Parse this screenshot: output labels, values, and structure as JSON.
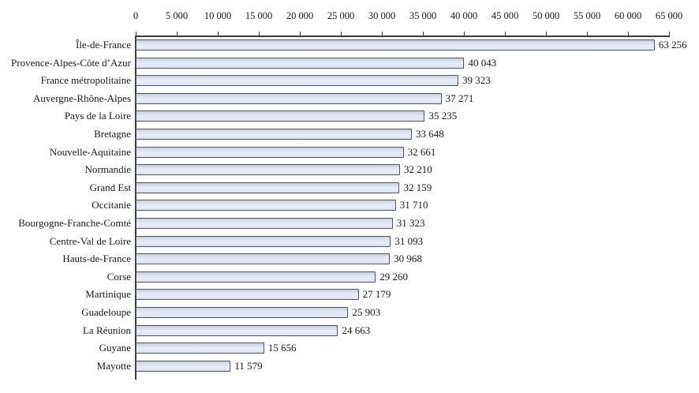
{
  "chart_data": {
    "type": "bar",
    "orientation": "horizontal",
    "title": "",
    "xlabel": "",
    "ylabel": "",
    "xlim": [
      0,
      65000
    ],
    "axis_position": "top",
    "grid": false,
    "legend": null,
    "x_ticks": [
      {
        "value": 0,
        "label": "0"
      },
      {
        "value": 5000,
        "label": "5 000"
      },
      {
        "value": 10000,
        "label": "10 000"
      },
      {
        "value": 15000,
        "label": "15 000"
      },
      {
        "value": 20000,
        "label": "20 000"
      },
      {
        "value": 25000,
        "label": "25 000"
      },
      {
        "value": 30000,
        "label": "30 000"
      },
      {
        "value": 35000,
        "label": "35 000"
      },
      {
        "value": 40000,
        "label": "40 000"
      },
      {
        "value": 45000,
        "label": "45 000"
      },
      {
        "value": 50000,
        "label": "50 000"
      },
      {
        "value": 55000,
        "label": "55 000"
      },
      {
        "value": 60000,
        "label": "60 000"
      },
      {
        "value": 65000,
        "label": "65 000"
      }
    ],
    "categories": [
      "Île-de-France",
      "Provence-Alpes-Côte d’Azur",
      "France métropolitaine",
      "Auvergne-Rhône-Alpes",
      "Pays de la Loire",
      "Bretagne",
      "Nouvelle-Aquitaine",
      "Normandie",
      "Grand Est",
      "Occitanie",
      "Bourgogne-Franche-Comté",
      "Centre-Val de Loire",
      "Hauts-de-France",
      "Corse",
      "Martinique",
      "Guadeloupe",
      "La Réunion",
      "Guyane",
      "Mayotte"
    ],
    "values": [
      63256,
      40043,
      39323,
      37271,
      35235,
      33648,
      32661,
      32210,
      32159,
      31710,
      31323,
      31093,
      30968,
      29260,
      27179,
      25903,
      24663,
      15656,
      11579
    ],
    "value_labels": [
      "63 256",
      "40 043",
      "39 323",
      "37 271",
      "35 235",
      "33 648",
      "32 661",
      "32 210",
      "32 159",
      "31 710",
      "31 323",
      "31 093",
      "30 968",
      "29 260",
      "27 179",
      "25 903",
      "24 663",
      "15 656",
      "11 579"
    ],
    "colors": {
      "bar_fill": "#dfe5f0",
      "bar_border": "#4f545c",
      "axis": "#3a3a3a",
      "text": "#1a1a1a",
      "background": "#ffffff"
    }
  }
}
